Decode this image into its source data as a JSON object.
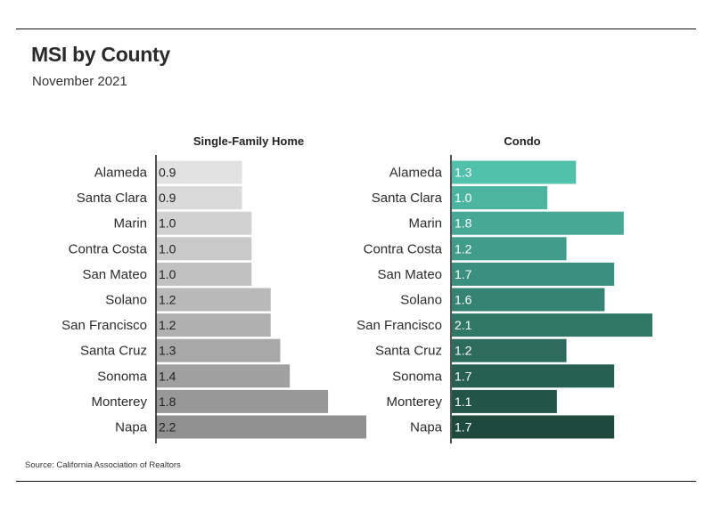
{
  "title": "MSI by County",
  "subtitle": "November 2021",
  "source": "Source:  California Association of Realtors",
  "chart_data": [
    {
      "type": "bar",
      "orientation": "horizontal",
      "title": "Single-Family Home",
      "categories": [
        "Alameda",
        "Santa Clara",
        "Marin",
        "Contra Costa",
        "San Mateo",
        "Solano",
        "San Francisco",
        "Santa Cruz",
        "Sonoma",
        "Monterey",
        "Napa"
      ],
      "values": [
        0.9,
        0.9,
        1.0,
        1.0,
        1.0,
        1.2,
        1.2,
        1.3,
        1.4,
        1.8,
        2.2
      ],
      "value_labels": [
        "0.9",
        "0.9",
        "1.0",
        "1.0",
        "1.0",
        "1.2",
        "1.2",
        "1.3",
        "1.4",
        "1.8",
        "2.2"
      ],
      "xlim": [
        0,
        2.2
      ],
      "colors": [
        "#e2e2e2",
        "#dadada",
        "#d1d1d1",
        "#c9c9c9",
        "#c1c1c1",
        "#b9b9b9",
        "#b0b0b0",
        "#a8a8a8",
        "#a0a0a0",
        "#989898",
        "#909090"
      ],
      "label_color": "#222222"
    },
    {
      "type": "bar",
      "orientation": "horizontal",
      "title": "Condo",
      "categories": [
        "Alameda",
        "Santa Clara",
        "Marin",
        "Contra Costa",
        "San Mateo",
        "Solano",
        "San Francisco",
        "Santa Cruz",
        "Sonoma",
        "Monterey",
        "Napa"
      ],
      "values": [
        1.3,
        1.0,
        1.8,
        1.2,
        1.7,
        1.6,
        2.1,
        1.2,
        1.7,
        1.1,
        1.7
      ],
      "value_labels": [
        "1.3",
        "1.0",
        "1.8",
        "1.2",
        "1.7",
        "1.6",
        "2.1",
        "1.2",
        "1.7",
        "1.1",
        "1.7"
      ],
      "xlim": [
        0,
        2.1
      ],
      "colors": [
        "#52c1ac",
        "#4bb5a0",
        "#46a895",
        "#419c89",
        "#3b8f7e",
        "#368373",
        "#317768",
        "#2c6b5d",
        "#276052",
        "#225447",
        "#1d4a3d"
      ],
      "label_color": "#ffffff"
    }
  ]
}
